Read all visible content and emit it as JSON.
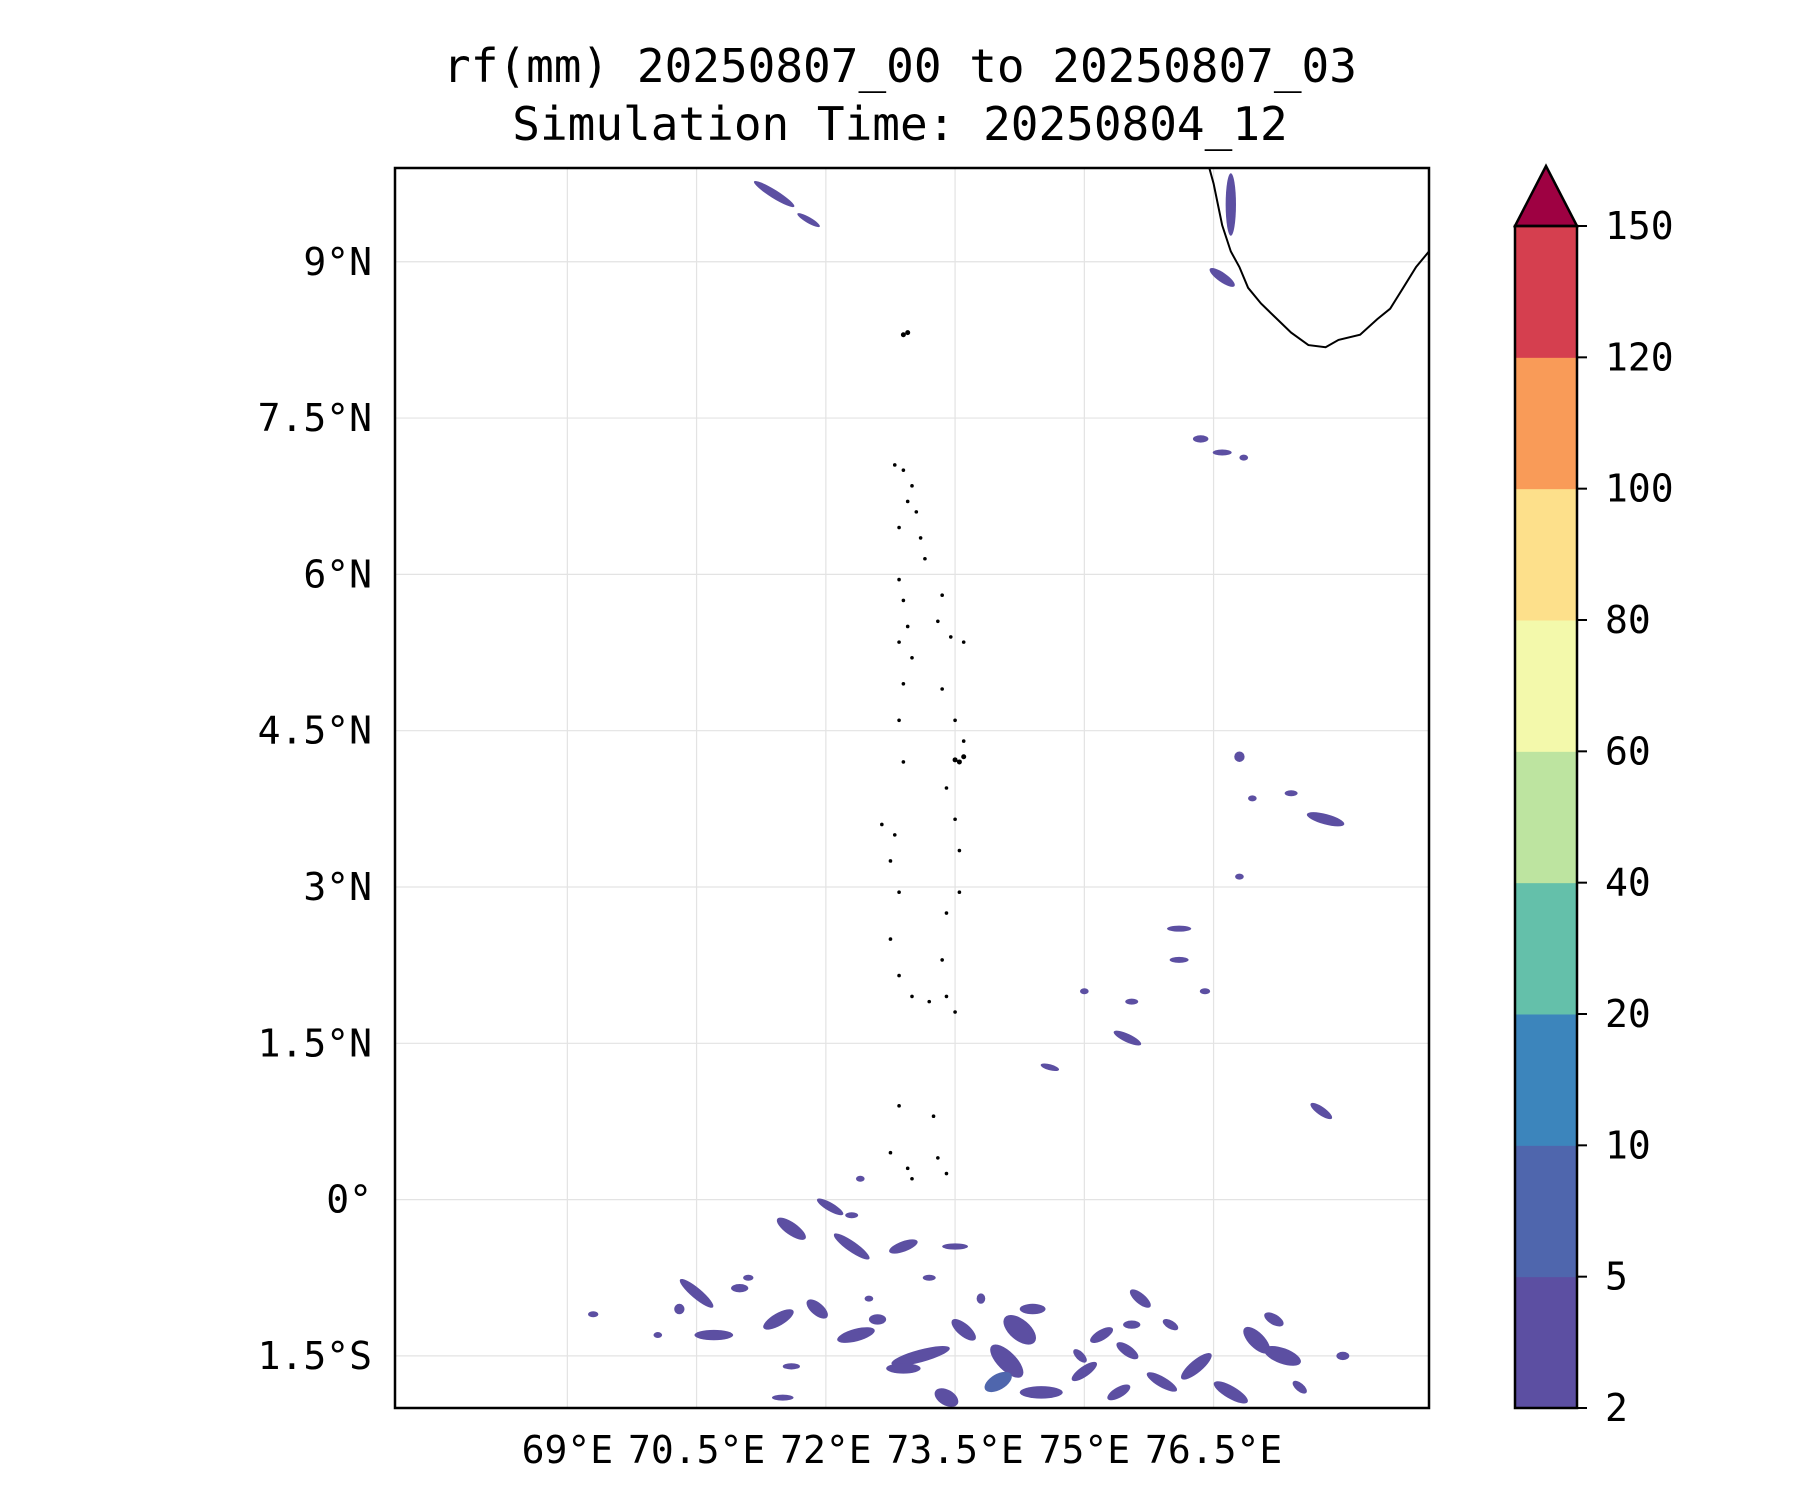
{
  "chart_data": {
    "type": "heatmap",
    "title": "rf(mm) 20250807_00 to 20250807_03",
    "subtitle": "Simulation Time: 20250804_12",
    "xlabel": "",
    "ylabel": "",
    "xlim": [
      67.0,
      79.0
    ],
    "ylim": [
      -2.0,
      9.9
    ],
    "x_ticks": [
      69.0,
      70.5,
      72.0,
      73.5,
      75.0,
      76.5
    ],
    "x_tick_labels": [
      "69°E",
      "70.5°E",
      "72°E",
      "73.5°E",
      "75°E",
      "76.5°E"
    ],
    "y_ticks": [
      9.0,
      7.5,
      6.0,
      4.5,
      3.0,
      1.5,
      0.0,
      -1.5
    ],
    "y_tick_labels": [
      "9°N",
      "7.5°N",
      "6°N",
      "4.5°N",
      "3°N",
      "1.5°N",
      "0°",
      "1.5°S"
    ],
    "grid": true,
    "colorbar": {
      "levels": [
        2,
        5,
        10,
        20,
        40,
        60,
        80,
        100,
        120,
        150
      ],
      "level_labels": [
        "2",
        "5",
        "10",
        "20",
        "40",
        "60",
        "80",
        "100",
        "120",
        "150"
      ],
      "colors": [
        "#5c4fa2",
        "#4f66ad",
        "#3c85bc",
        "#64c0aa",
        "#bde4a0",
        "#f3f9ab",
        "#fde08b",
        "#f99b58",
        "#d53f4f"
      ],
      "extend_color": "#9e0142",
      "extend": "max"
    },
    "rain_patches": [
      {
        "lon": 71.4,
        "lat": 9.65,
        "w": 0.55,
        "h": 0.08,
        "angle": 32,
        "level": 0
      },
      {
        "lon": 71.8,
        "lat": 9.4,
        "w": 0.3,
        "h": 0.05,
        "angle": 30,
        "level": 0
      },
      {
        "lon": 76.7,
        "lat": 9.55,
        "w": 0.12,
        "h": 0.6,
        "angle": 0,
        "level": 0
      },
      {
        "lon": 76.6,
        "lat": 8.85,
        "w": 0.35,
        "h": 0.09,
        "angle": 35,
        "level": 0
      },
      {
        "lon": 76.35,
        "lat": 7.3,
        "w": 0.18,
        "h": 0.07,
        "angle": 0,
        "level": 0
      },
      {
        "lon": 76.6,
        "lat": 7.17,
        "w": 0.22,
        "h": 0.05,
        "angle": 0,
        "level": 0
      },
      {
        "lon": 76.85,
        "lat": 7.12,
        "w": 0.1,
        "h": 0.05,
        "angle": 0,
        "level": 0
      },
      {
        "lon": 76.8,
        "lat": 4.25,
        "w": 0.12,
        "h": 0.1,
        "angle": 0,
        "level": 0
      },
      {
        "lon": 77.8,
        "lat": 3.65,
        "w": 0.45,
        "h": 0.1,
        "angle": 15,
        "level": 0
      },
      {
        "lon": 77.4,
        "lat": 3.9,
        "w": 0.15,
        "h": 0.04,
        "angle": 0,
        "level": 0
      },
      {
        "lon": 76.95,
        "lat": 3.85,
        "w": 0.1,
        "h": 0.04,
        "angle": 0,
        "level": 0
      },
      {
        "lon": 76.8,
        "lat": 3.1,
        "w": 0.1,
        "h": 0.04,
        "angle": 0,
        "level": 0
      },
      {
        "lon": 76.1,
        "lat": 2.6,
        "w": 0.28,
        "h": 0.04,
        "angle": 0,
        "level": 0
      },
      {
        "lon": 76.1,
        "lat": 2.3,
        "w": 0.22,
        "h": 0.04,
        "angle": 0,
        "level": 0
      },
      {
        "lon": 76.4,
        "lat": 2.0,
        "w": 0.12,
        "h": 0.04,
        "angle": 0,
        "level": 0
      },
      {
        "lon": 75.0,
        "lat": 2.0,
        "w": 0.1,
        "h": 0.03,
        "angle": 0,
        "level": 0
      },
      {
        "lon": 75.55,
        "lat": 1.9,
        "w": 0.15,
        "h": 0.04,
        "angle": 0,
        "level": 0
      },
      {
        "lon": 75.5,
        "lat": 1.55,
        "w": 0.35,
        "h": 0.08,
        "angle": 25,
        "level": 0
      },
      {
        "lon": 74.6,
        "lat": 1.27,
        "w": 0.22,
        "h": 0.05,
        "angle": 15,
        "level": 0
      },
      {
        "lon": 77.75,
        "lat": 0.85,
        "w": 0.3,
        "h": 0.08,
        "angle": 35,
        "level": 0
      },
      {
        "lon": 72.4,
        "lat": 0.2,
        "w": 0.1,
        "h": 0.05,
        "angle": 0,
        "level": 0
      },
      {
        "lon": 72.3,
        "lat": -0.15,
        "w": 0.15,
        "h": 0.05,
        "angle": 0,
        "level": 0
      },
      {
        "lon": 72.05,
        "lat": -0.07,
        "w": 0.35,
        "h": 0.08,
        "angle": 30,
        "level": 0
      },
      {
        "lon": 71.6,
        "lat": -0.28,
        "w": 0.4,
        "h": 0.12,
        "angle": 35,
        "level": 0
      },
      {
        "lon": 72.3,
        "lat": -0.45,
        "w": 0.5,
        "h": 0.1,
        "angle": 35,
        "level": 0
      },
      {
        "lon": 72.9,
        "lat": -0.45,
        "w": 0.35,
        "h": 0.1,
        "angle": -20,
        "level": 0
      },
      {
        "lon": 73.5,
        "lat": -0.45,
        "w": 0.3,
        "h": 0.06,
        "angle": 0,
        "level": 0
      },
      {
        "lon": 70.5,
        "lat": -0.9,
        "w": 0.5,
        "h": 0.1,
        "angle": 40,
        "level": 0
      },
      {
        "lon": 70.7,
        "lat": -1.3,
        "w": 0.45,
        "h": 0.1,
        "angle": 0,
        "level": 0
      },
      {
        "lon": 71.45,
        "lat": -1.15,
        "w": 0.4,
        "h": 0.12,
        "angle": -30,
        "level": 0
      },
      {
        "lon": 71.9,
        "lat": -1.05,
        "w": 0.3,
        "h": 0.12,
        "angle": 40,
        "level": 0
      },
      {
        "lon": 72.35,
        "lat": -1.3,
        "w": 0.45,
        "h": 0.12,
        "angle": -15,
        "level": 0
      },
      {
        "lon": 72.6,
        "lat": -1.15,
        "w": 0.2,
        "h": 0.1,
        "angle": 0,
        "level": 0
      },
      {
        "lon": 73.1,
        "lat": -1.5,
        "w": 0.7,
        "h": 0.12,
        "angle": -15,
        "level": 0
      },
      {
        "lon": 72.9,
        "lat": -1.62,
        "w": 0.4,
        "h": 0.1,
        "angle": 0,
        "level": 0
      },
      {
        "lon": 73.6,
        "lat": -1.25,
        "w": 0.35,
        "h": 0.12,
        "angle": 40,
        "level": 0
      },
      {
        "lon": 73.4,
        "lat": -1.9,
        "w": 0.3,
        "h": 0.15,
        "angle": 30,
        "level": 0
      },
      {
        "lon": 74.1,
        "lat": -1.55,
        "w": 0.5,
        "h": 0.18,
        "angle": 45,
        "level": 0
      },
      {
        "lon": 74.25,
        "lat": -1.25,
        "w": 0.45,
        "h": 0.2,
        "angle": 40,
        "level": 0
      },
      {
        "lon": 74.4,
        "lat": -1.05,
        "w": 0.3,
        "h": 0.1,
        "angle": 0,
        "level": 0
      },
      {
        "lon": 74.0,
        "lat": -1.75,
        "w": 0.35,
        "h": 0.15,
        "angle": -30,
        "level": 1
      },
      {
        "lon": 74.5,
        "lat": -1.85,
        "w": 0.5,
        "h": 0.12,
        "angle": 0,
        "level": 0
      },
      {
        "lon": 75.0,
        "lat": -1.65,
        "w": 0.35,
        "h": 0.1,
        "angle": -35,
        "level": 0
      },
      {
        "lon": 75.5,
        "lat": -1.45,
        "w": 0.3,
        "h": 0.1,
        "angle": 35,
        "level": 0
      },
      {
        "lon": 75.4,
        "lat": -1.85,
        "w": 0.3,
        "h": 0.1,
        "angle": -30,
        "level": 0
      },
      {
        "lon": 75.9,
        "lat": -1.75,
        "w": 0.4,
        "h": 0.1,
        "angle": 30,
        "level": 0
      },
      {
        "lon": 75.65,
        "lat": -0.95,
        "w": 0.3,
        "h": 0.1,
        "angle": 40,
        "level": 0
      },
      {
        "lon": 75.55,
        "lat": -1.2,
        "w": 0.2,
        "h": 0.08,
        "angle": 0,
        "level": 0
      },
      {
        "lon": 76.0,
        "lat": -1.2,
        "w": 0.2,
        "h": 0.08,
        "angle": 30,
        "level": 0
      },
      {
        "lon": 76.3,
        "lat": -1.6,
        "w": 0.45,
        "h": 0.12,
        "angle": -40,
        "level": 0
      },
      {
        "lon": 76.7,
        "lat": -1.85,
        "w": 0.45,
        "h": 0.12,
        "angle": 30,
        "level": 0
      },
      {
        "lon": 77.0,
        "lat": -1.35,
        "w": 0.4,
        "h": 0.15,
        "angle": 45,
        "level": 0
      },
      {
        "lon": 77.3,
        "lat": -1.5,
        "w": 0.45,
        "h": 0.15,
        "angle": 20,
        "level": 0
      },
      {
        "lon": 77.2,
        "lat": -1.15,
        "w": 0.25,
        "h": 0.1,
        "angle": 30,
        "level": 0
      },
      {
        "lon": 77.5,
        "lat": -1.8,
        "w": 0.2,
        "h": 0.08,
        "angle": 40,
        "level": 0
      },
      {
        "lon": 78.0,
        "lat": -1.5,
        "w": 0.15,
        "h": 0.08,
        "angle": 0,
        "level": 0
      },
      {
        "lon": 75.2,
        "lat": -1.3,
        "w": 0.3,
        "h": 0.1,
        "angle": -30,
        "level": 0
      },
      {
        "lon": 74.95,
        "lat": -1.5,
        "w": 0.2,
        "h": 0.08,
        "angle": 45,
        "level": 0
      },
      {
        "lon": 71.0,
        "lat": -0.85,
        "w": 0.2,
        "h": 0.08,
        "angle": 0,
        "level": 0
      },
      {
        "lon": 70.3,
        "lat": -1.05,
        "w": 0.12,
        "h": 0.1,
        "angle": 0,
        "level": 0
      },
      {
        "lon": 69.3,
        "lat": -1.1,
        "w": 0.12,
        "h": 0.05,
        "angle": 0,
        "level": 0
      },
      {
        "lon": 70.05,
        "lat": -1.3,
        "w": 0.1,
        "h": 0.05,
        "angle": 0,
        "level": 0
      },
      {
        "lon": 71.6,
        "lat": -1.6,
        "w": 0.2,
        "h": 0.06,
        "angle": 0,
        "level": 0
      },
      {
        "lon": 71.5,
        "lat": -1.9,
        "w": 0.25,
        "h": 0.05,
        "angle": 0,
        "level": 0
      },
      {
        "lon": 73.8,
        "lat": -0.95,
        "w": 0.1,
        "h": 0.1,
        "angle": 0,
        "level": 0
      },
      {
        "lon": 73.2,
        "lat": -0.75,
        "w": 0.15,
        "h": 0.05,
        "angle": 0,
        "level": 0
      },
      {
        "lon": 72.5,
        "lat": -0.95,
        "w": 0.1,
        "h": 0.05,
        "angle": 0,
        "level": 0
      },
      {
        "lon": 71.1,
        "lat": -0.75,
        "w": 0.12,
        "h": 0.05,
        "angle": 0,
        "level": 0
      }
    ],
    "coastline_lonlat": [
      [
        76.45,
        9.9
      ],
      [
        76.5,
        9.75
      ],
      [
        76.55,
        9.55
      ],
      [
        76.6,
        9.35
      ],
      [
        76.7,
        9.1
      ],
      [
        76.8,
        8.95
      ],
      [
        76.9,
        8.75
      ],
      [
        77.05,
        8.6
      ],
      [
        77.2,
        8.48
      ],
      [
        77.4,
        8.32
      ],
      [
        77.6,
        8.2
      ],
      [
        77.8,
        8.18
      ],
      [
        77.95,
        8.25
      ],
      [
        78.2,
        8.3
      ],
      [
        78.4,
        8.45
      ],
      [
        78.55,
        8.55
      ],
      [
        78.7,
        8.75
      ],
      [
        78.85,
        8.95
      ],
      [
        79.0,
        9.1
      ]
    ],
    "islands_lonlat": [
      [
        72.9,
        8.3
      ],
      [
        72.95,
        8.32
      ],
      [
        73.55,
        4.2
      ],
      [
        73.5,
        4.22
      ],
      [
        73.6,
        4.25
      ]
    ]
  }
}
